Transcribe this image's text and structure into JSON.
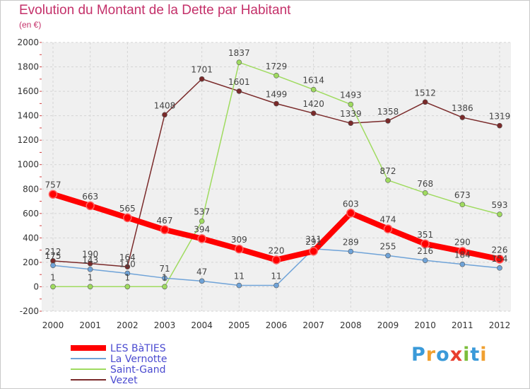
{
  "title": "Evolution du Montant de la Dette par Habitant",
  "subtitle": "(en €)",
  "logo": {
    "text": "Proxiti",
    "letters": [
      {
        "ch": "P",
        "color": "#3a9ad9"
      },
      {
        "ch": "r",
        "color": "#f0a030"
      },
      {
        "ch": "o",
        "color": "#3a9ad9"
      },
      {
        "ch": "x",
        "color": "#e83e2e"
      },
      {
        "ch": "i",
        "color": "#7cbe3c"
      },
      {
        "ch": "t",
        "color": "#3a9ad9"
      },
      {
        "ch": "i",
        "color": "#f0a030"
      }
    ]
  },
  "chart_data": {
    "type": "line",
    "x": [
      "2000",
      "2001",
      "2002",
      "2003",
      "2004",
      "2005",
      "2006",
      "2007",
      "2008",
      "2009",
      "2010",
      "2011",
      "2012"
    ],
    "ylim": [
      -200,
      2000
    ],
    "yticks": [
      -200,
      0,
      200,
      400,
      600,
      800,
      1000,
      1200,
      1400,
      1600,
      1800,
      2000
    ],
    "grid": true,
    "legend_position": "bottom-left",
    "series": [
      {
        "name": "LES BàTIES",
        "color": "#ff0000",
        "values": [
          757,
          663,
          565,
          467,
          394,
          309,
          220,
          291,
          603,
          474,
          351,
          290,
          226
        ],
        "labels": [
          "757",
          "663",
          "565",
          "467",
          "394",
          "309",
          "220",
          "291",
          "603",
          "474",
          "351",
          "290",
          "226"
        ]
      },
      {
        "name": "La Vernotte",
        "color": "#6fa3d8",
        "values": [
          175,
          143,
          110,
          71,
          47,
          11,
          11,
          311,
          289,
          255,
          216,
          184,
          154
        ],
        "labels": [
          "175",
          "143",
          "110",
          "71",
          "47",
          "11",
          "11",
          "311",
          "289",
          "255",
          "216",
          "184",
          "154"
        ]
      },
      {
        "name": "Saint-Gand",
        "color": "#9fdb5f",
        "values": [
          1,
          1,
          1,
          1,
          537,
          1837,
          1729,
          1614,
          1493,
          872,
          768,
          673,
          593
        ],
        "labels": [
          "1",
          "1",
          "1",
          "1",
          "537",
          "1837",
          "1729",
          "1614",
          "1493",
          "872",
          "768",
          "673",
          "593"
        ]
      },
      {
        "name": "Vezet",
        "color": "#7a2a2a",
        "values": [
          212,
          190,
          164,
          1408,
          1701,
          1601,
          1499,
          1420,
          1339,
          1358,
          1512,
          1386,
          1319
        ],
        "labels": [
          "212",
          "190",
          "164",
          "1408",
          "1701",
          "1601",
          "1499",
          "1420",
          "1339",
          "1358",
          "1512",
          "1386",
          "1319"
        ]
      }
    ]
  }
}
